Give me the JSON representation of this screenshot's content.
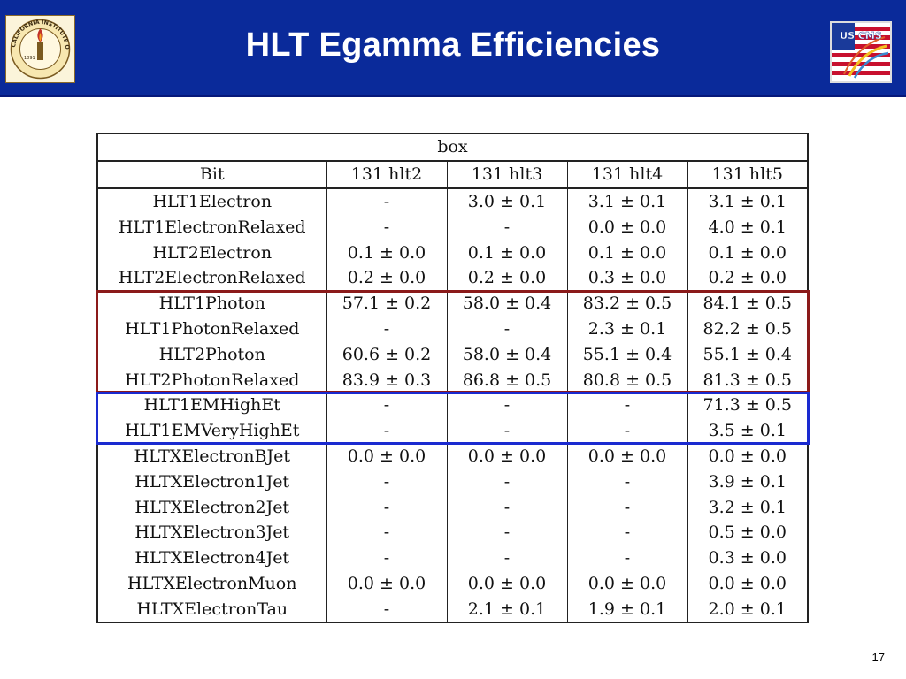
{
  "slide": {
    "title": "HLT Egamma Efficiencies",
    "page_number": "17",
    "header_color": "#0a2a9a"
  },
  "logos": {
    "left": {
      "icon": "caltech-seal-icon",
      "text": "CALIFORNIA INSTITUTE OF TECHNOLOGY",
      "year": "1891"
    },
    "right": {
      "icon": "us-cms-logo-icon",
      "text": "US CMS"
    }
  },
  "table": {
    "caption": "box",
    "columns": [
      "Bit",
      "131 hlt2",
      "131 hlt3",
      "131 hlt4",
      "131 hlt5"
    ],
    "rows": [
      [
        "HLT1Electron",
        "-",
        "3.0 ± 0.1",
        "3.1 ± 0.1",
        "3.1 ± 0.1"
      ],
      [
        "HLT1ElectronRelaxed",
        "-",
        "-",
        "0.0 ± 0.0",
        "4.0 ± 0.1"
      ],
      [
        "HLT2Electron",
        "0.1 ± 0.0",
        "0.1 ± 0.0",
        "0.1 ± 0.0",
        "0.1 ± 0.0"
      ],
      [
        "HLT2ElectronRelaxed",
        "0.2 ± 0.0",
        "0.2 ± 0.0",
        "0.3 ± 0.0",
        "0.2 ± 0.0"
      ],
      [
        "HLT1Photon",
        "57.1 ± 0.2",
        "58.0 ± 0.4",
        "83.2 ± 0.5",
        "84.1 ± 0.5"
      ],
      [
        "HLT1PhotonRelaxed",
        "-",
        "-",
        "2.3 ± 0.1",
        "82.2 ± 0.5"
      ],
      [
        "HLT2Photon",
        "60.6 ± 0.2",
        "58.0 ± 0.4",
        "55.1 ± 0.4",
        "55.1 ± 0.4"
      ],
      [
        "HLT2PhotonRelaxed",
        "83.9 ± 0.3",
        "86.8 ± 0.5",
        "80.8 ± 0.5",
        "81.3 ± 0.5"
      ],
      [
        "HLT1EMHighEt",
        "-",
        "-",
        "-",
        "71.3 ± 0.5"
      ],
      [
        "HLT1EMVeryHighEt",
        "-",
        "-",
        "-",
        "3.5 ± 0.1"
      ],
      [
        "HLTXElectronBJet",
        "0.0 ± 0.0",
        "0.0 ± 0.0",
        "0.0 ± 0.0",
        "0.0 ± 0.0"
      ],
      [
        "HLTXElectron1Jet",
        "-",
        "-",
        "-",
        "3.9 ± 0.1"
      ],
      [
        "HLTXElectron2Jet",
        "-",
        "-",
        "-",
        "3.2 ± 0.1"
      ],
      [
        "HLTXElectron3Jet",
        "-",
        "-",
        "-",
        "0.5 ± 0.0"
      ],
      [
        "HLTXElectron4Jet",
        "-",
        "-",
        "-",
        "0.3 ± 0.0"
      ],
      [
        "HLTXElectronMuon",
        "0.0 ± 0.0",
        "0.0 ± 0.0",
        "0.0 ± 0.0",
        "0.0 ± 0.0"
      ],
      [
        "HLTXElectronTau",
        "-",
        "2.1 ± 0.1",
        "1.9 ± 0.1",
        "2.0 ± 0.1"
      ]
    ],
    "highlights": [
      {
        "name": "photon-group-box",
        "first_row": 4,
        "last_row": 7,
        "color": "#8b1a1a"
      },
      {
        "name": "em-high-et-group-box",
        "first_row": 8,
        "last_row": 9,
        "color": "#1a2ad0"
      }
    ]
  }
}
